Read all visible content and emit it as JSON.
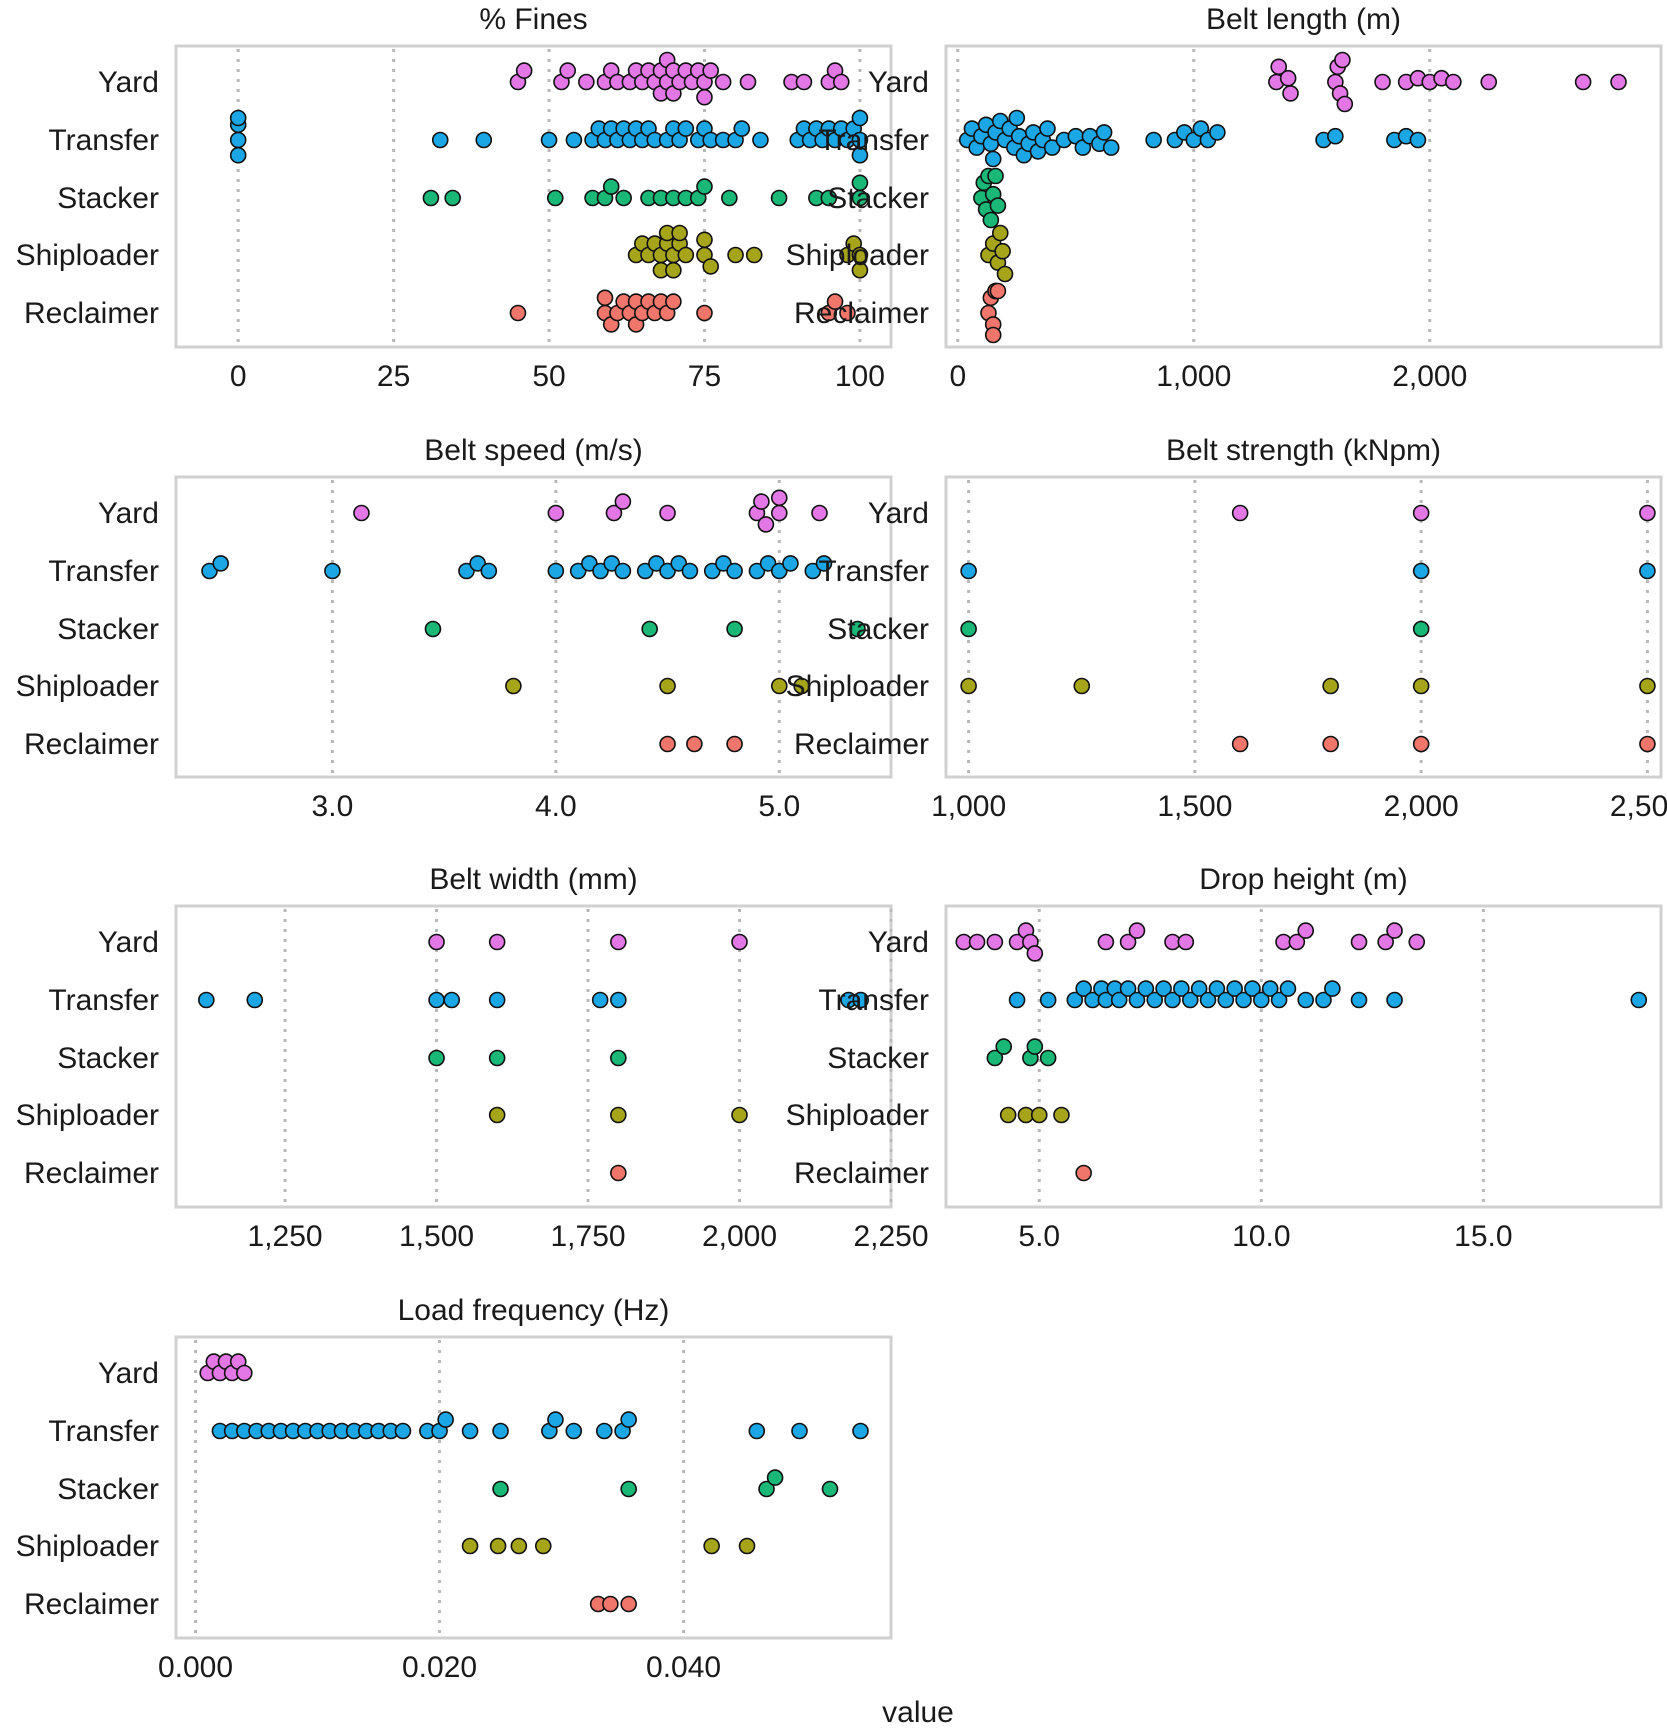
{
  "figure": {
    "xlabel": "value",
    "categories": [
      "Yard",
      "Transfer",
      "Stacker",
      "Shiploader",
      "Reclaimer"
    ],
    "colors": {
      "Yard": "#e377e6",
      "Transfer": "#1ba7e6",
      "Stacker": "#19b877",
      "Shiploader": "#a6a51a",
      "Reclaimer": "#f0766b"
    }
  },
  "chart_data": [
    {
      "type": "scatter",
      "title": "% Fines",
      "xlim": [
        -10,
        105
      ],
      "xticks": [
        0,
        25,
        50,
        75,
        100
      ],
      "xtick_labels": [
        "0",
        "25",
        "50",
        "75",
        "100"
      ],
      "series": [
        {
          "name": "Yard",
          "values": [
            45,
            46,
            52,
            53,
            56,
            59,
            60,
            61,
            63,
            64,
            65,
            66,
            67,
            68,
            68,
            69,
            69,
            70,
            70,
            71,
            72,
            73,
            74,
            75,
            75,
            76,
            78,
            82,
            89,
            91,
            95,
            96,
            97
          ]
        },
        {
          "name": "Transfer",
          "values": [
            0,
            0,
            0,
            0,
            32.5,
            39.5,
            50,
            54,
            57,
            58,
            59,
            60,
            61,
            62,
            63,
            64,
            65,
            66,
            67,
            69,
            70,
            71,
            72,
            74,
            75,
            76,
            78,
            80,
            81,
            84,
            90,
            91,
            92,
            93,
            94,
            95,
            96,
            97,
            98,
            99,
            100,
            100,
            100
          ]
        },
        {
          "name": "Stacker",
          "values": [
            31,
            34.5,
            51,
            57,
            59,
            60,
            62,
            66,
            68,
            70,
            72,
            74,
            75,
            79,
            87,
            93,
            95,
            100,
            100
          ]
        },
        {
          "name": "Shiploader",
          "values": [
            64,
            65,
            66,
            67,
            68,
            68,
            69,
            69,
            70,
            70,
            71,
            71,
            72,
            75,
            75,
            76,
            80,
            83,
            98,
            99,
            100,
            100
          ]
        },
        {
          "name": "Reclaimer",
          "values": [
            45,
            59,
            59,
            60,
            61,
            62,
            63,
            64,
            64,
            65,
            66,
            67,
            68,
            69,
            70,
            75,
            95,
            96,
            98
          ]
        }
      ]
    },
    {
      "type": "scatter",
      "title": "Belt length (m)",
      "xlim": [
        -50,
        2980
      ],
      "xticks": [
        0,
        1000,
        2000
      ],
      "xtick_labels": [
        "0",
        "1,000",
        "2,000"
      ],
      "series": [
        {
          "name": "Yard",
          "values": [
            1350,
            1360,
            1400,
            1410,
            1600,
            1610,
            1620,
            1630,
            1640,
            1800,
            1900,
            1950,
            2000,
            2050,
            2100,
            2250,
            2650,
            2800
          ]
        },
        {
          "name": "Transfer",
          "values": [
            40,
            60,
            80,
            100,
            120,
            140,
            150,
            160,
            180,
            200,
            220,
            240,
            250,
            260,
            280,
            300,
            320,
            340,
            360,
            380,
            400,
            450,
            500,
            530,
            560,
            600,
            620,
            650,
            830,
            920,
            960,
            1000,
            1030,
            1060,
            1100,
            1550,
            1600,
            1850,
            1900,
            1950
          ]
        },
        {
          "name": "Stacker",
          "values": [
            100,
            110,
            120,
            130,
            140,
            150,
            160,
            170
          ]
        },
        {
          "name": "Shiploader",
          "values": [
            130,
            150,
            170,
            180,
            190,
            200
          ]
        },
        {
          "name": "Reclaimer",
          "values": [
            130,
            140,
            150,
            150,
            160,
            160,
            170
          ]
        }
      ]
    },
    {
      "type": "scatter",
      "title": "Belt speed (m/s)",
      "xlim": [
        2.3,
        5.5
      ],
      "xticks": [
        3.0,
        4.0,
        5.0
      ],
      "xtick_labels": [
        "3.0",
        "4.0",
        "5.0"
      ],
      "series": [
        {
          "name": "Yard",
          "values": [
            3.13,
            4.0,
            4.26,
            4.3,
            4.5,
            4.9,
            4.92,
            4.94,
            5.0,
            5.0,
            5.18
          ]
        },
        {
          "name": "Transfer",
          "values": [
            2.45,
            2.5,
            3.0,
            3.6,
            3.65,
            3.7,
            4.0,
            4.1,
            4.15,
            4.2,
            4.25,
            4.3,
            4.4,
            4.45,
            4.5,
            4.55,
            4.6,
            4.7,
            4.75,
            4.8,
            4.9,
            4.95,
            5.0,
            5.05,
            5.15,
            5.2
          ]
        },
        {
          "name": "Stacker",
          "values": [
            3.45,
            4.42,
            4.8,
            5.35
          ]
        },
        {
          "name": "Shiploader",
          "values": [
            3.81,
            4.5,
            5.0,
            5.1
          ]
        },
        {
          "name": "Reclaimer",
          "values": [
            4.5,
            4.62,
            4.8
          ]
        }
      ]
    },
    {
      "type": "scatter",
      "title": "Belt strength (kNpm)",
      "xlim": [
        950,
        2530
      ],
      "xticks": [
        1000,
        1500,
        2000,
        2500
      ],
      "xtick_labels": [
        "1,000",
        "1,500",
        "2,000",
        "2,500"
      ],
      "series": [
        {
          "name": "Yard",
          "values": [
            1600,
            2000,
            2500
          ]
        },
        {
          "name": "Transfer",
          "values": [
            1000,
            2000,
            2500
          ]
        },
        {
          "name": "Stacker",
          "values": [
            1000,
            2000
          ]
        },
        {
          "name": "Shiploader",
          "values": [
            1000,
            1250,
            1800,
            2000,
            2500
          ]
        },
        {
          "name": "Reclaimer",
          "values": [
            1600,
            1800,
            2000,
            2500
          ]
        }
      ]
    },
    {
      "type": "scatter",
      "title": "Belt width (mm)",
      "xlim": [
        1070,
        2250
      ],
      "xticks": [
        1250,
        1500,
        1750,
        2000,
        2250
      ],
      "xtick_labels": [
        "1,250",
        "1,500",
        "1,750",
        "2,000",
        "2,250"
      ],
      "series": [
        {
          "name": "Yard",
          "values": [
            1500,
            1600,
            1800,
            2000
          ]
        },
        {
          "name": "Transfer",
          "values": [
            1120,
            1200,
            1500,
            1525,
            1600,
            1770,
            1800,
            2180,
            2200
          ]
        },
        {
          "name": "Stacker",
          "values": [
            1500,
            1600,
            1800
          ]
        },
        {
          "name": "Shiploader",
          "values": [
            1600,
            1800,
            2000
          ]
        },
        {
          "name": "Reclaimer",
          "values": [
            1800
          ]
        }
      ]
    },
    {
      "type": "scatter",
      "title": "Drop height (m)",
      "xlim": [
        2.9,
        19.0
      ],
      "xticks": [
        5.0,
        10.0,
        15.0
      ],
      "xtick_labels": [
        "5.0",
        "10.0",
        "15.0"
      ],
      "series": [
        {
          "name": "Yard",
          "values": [
            3.3,
            3.6,
            4.0,
            4.5,
            4.7,
            4.8,
            4.9,
            6.5,
            7.0,
            7.2,
            8.0,
            8.3,
            10.5,
            10.8,
            11.0,
            12.2,
            12.8,
            13.0,
            13.5
          ]
        },
        {
          "name": "Transfer",
          "values": [
            4.5,
            5.2,
            5.8,
            6.0,
            6.2,
            6.4,
            6.5,
            6.7,
            6.8,
            7.0,
            7.2,
            7.4,
            7.6,
            7.8,
            8.0,
            8.2,
            8.4,
            8.6,
            8.8,
            9.0,
            9.2,
            9.4,
            9.6,
            9.8,
            10.0,
            10.2,
            10.4,
            10.6,
            11.0,
            11.4,
            11.6,
            12.2,
            13.0,
            18.5
          ]
        },
        {
          "name": "Stacker",
          "values": [
            4.0,
            4.2,
            4.8,
            4.9,
            5.2
          ]
        },
        {
          "name": "Shiploader",
          "values": [
            4.3,
            4.7,
            5.0,
            5.5
          ]
        },
        {
          "name": "Reclaimer",
          "values": [
            6.0
          ]
        }
      ]
    },
    {
      "type": "scatter",
      "title": "Load frequency (Hz)",
      "xlim": [
        -0.0016,
        0.057
      ],
      "xticks": [
        0.0,
        0.02,
        0.04
      ],
      "xtick_labels": [
        "0.000",
        "0.020",
        "0.040"
      ],
      "series": [
        {
          "name": "Yard",
          "values": [
            0.001,
            0.0015,
            0.002,
            0.0025,
            0.003,
            0.0035,
            0.004
          ]
        },
        {
          "name": "Transfer",
          "values": [
            0.002,
            0.003,
            0.004,
            0.005,
            0.006,
            0.007,
            0.008,
            0.009,
            0.01,
            0.011,
            0.012,
            0.013,
            0.014,
            0.015,
            0.016,
            0.017,
            0.019,
            0.02,
            0.0205,
            0.0225,
            0.025,
            0.029,
            0.0295,
            0.031,
            0.0335,
            0.035,
            0.0355,
            0.046,
            0.0495,
            0.0545
          ]
        },
        {
          "name": "Stacker",
          "values": [
            0.025,
            0.0355,
            0.0468,
            0.0475,
            0.052
          ]
        },
        {
          "name": "Shiploader",
          "values": [
            0.0225,
            0.0248,
            0.0265,
            0.0285,
            0.0423,
            0.0452
          ]
        },
        {
          "name": "Reclaimer",
          "values": [
            0.033,
            0.034,
            0.0355
          ]
        }
      ]
    }
  ]
}
